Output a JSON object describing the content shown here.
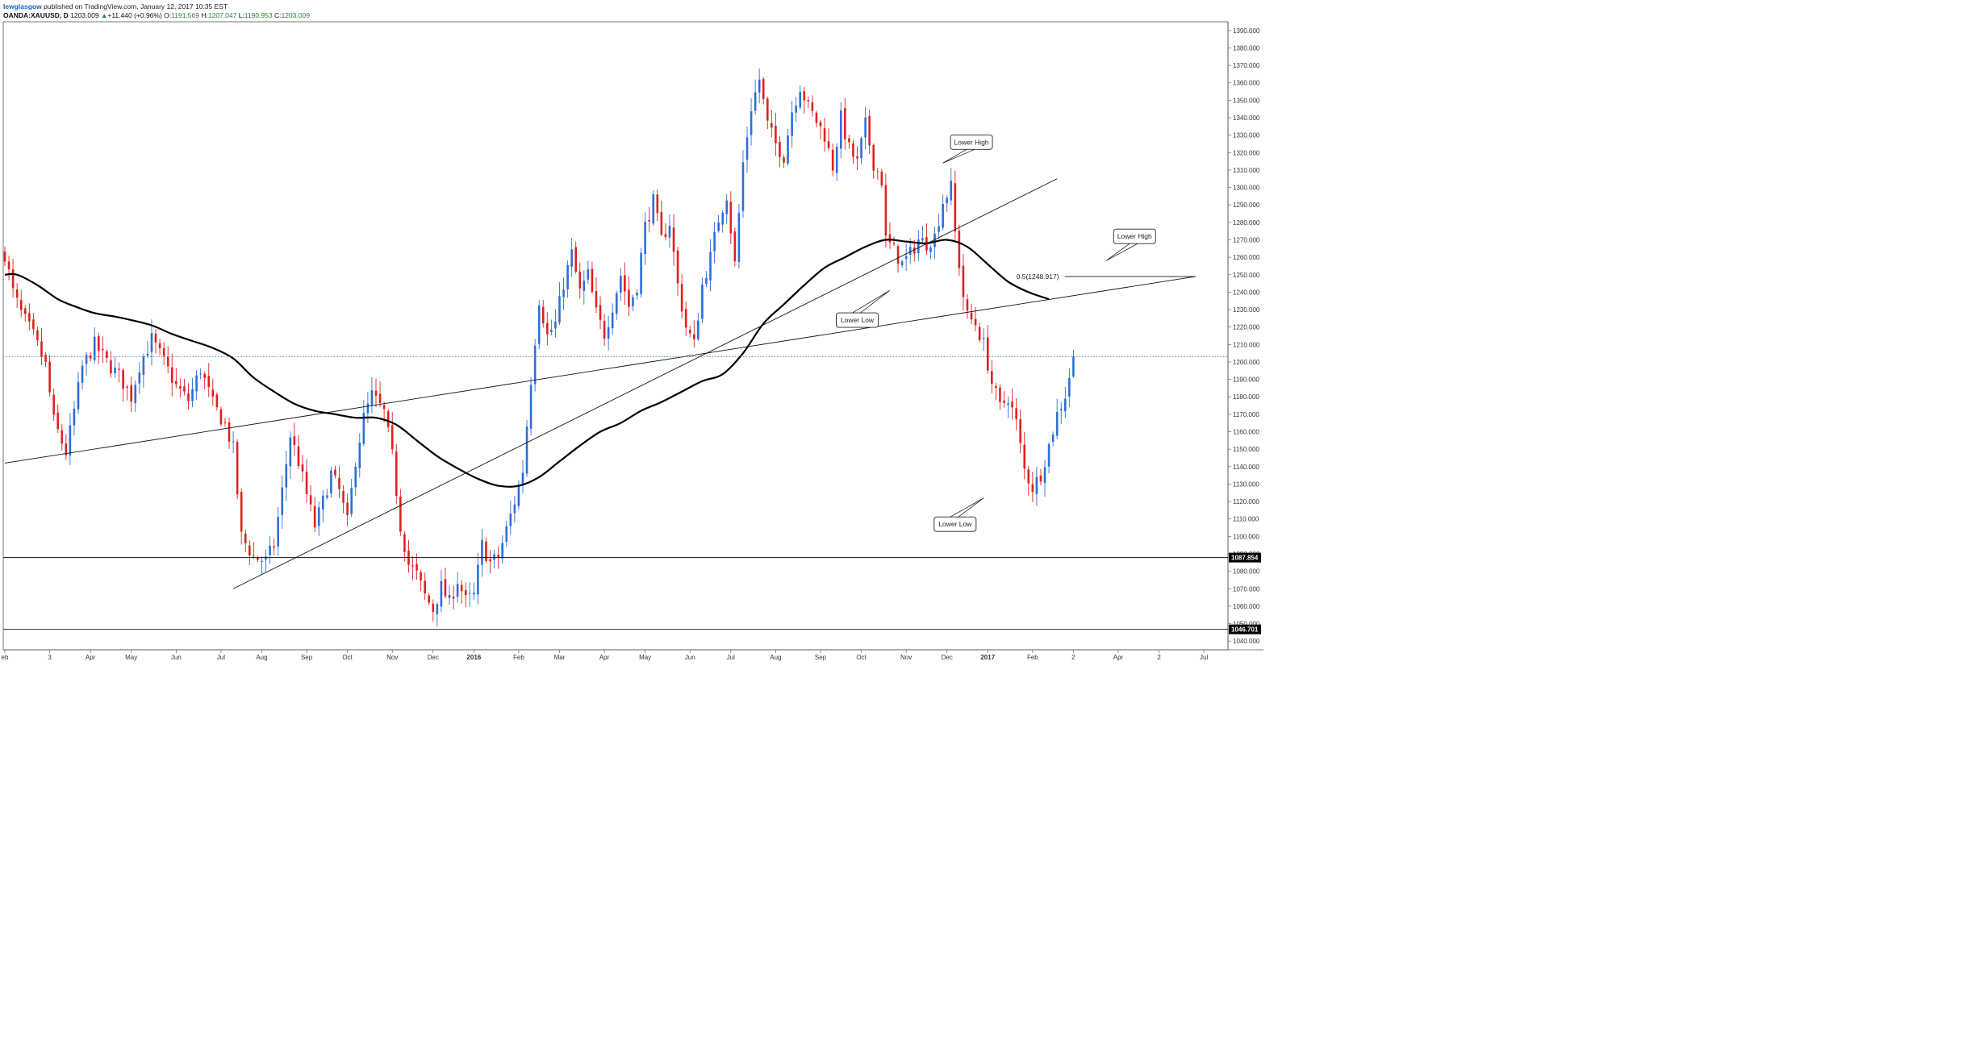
{
  "header": {
    "author": "lewglasgow",
    "published": " published on TradingView.com, January 12, 2017 10:35 EST",
    "symbol": "OANDA:XAUUSD, D",
    "last": "1203.009",
    "change": "+11.440 (+0.96%)",
    "o_label": "O:",
    "o_value": "1191.569",
    "h_label": "H:",
    "h_value": "1207.047",
    "l_label": "L:",
    "l_value": "1190.953",
    "c_label": "C:",
    "c_value": "1203.009"
  },
  "colors": {
    "up": "#2b6fd6",
    "down": "#e0201f",
    "ma": "#000000",
    "grid_border": "#555555",
    "current_line": "#4a7fb0",
    "up_arrow": "#2e7d32"
  },
  "chart_data": {
    "type": "candlestick",
    "symbol": "OANDA:XAUUSD",
    "timeframe": "D",
    "ylim": [
      1035,
      1395
    ],
    "y_ticks": [
      1040,
      1050,
      1060,
      1070,
      1080,
      1090,
      1100,
      1110,
      1120,
      1130,
      1140,
      1150,
      1160,
      1170,
      1180,
      1190,
      1200,
      1210,
      1220,
      1230,
      1240,
      1250,
      1260,
      1270,
      1280,
      1290,
      1300,
      1310,
      1320,
      1330,
      1340,
      1350,
      1360,
      1370,
      1380,
      1390
    ],
    "y_tick_decimals": 3,
    "x_ticks": [
      {
        "label": "eb",
        "idx": 0,
        "bold": false
      },
      {
        "label": "3",
        "idx": 11,
        "bold": false
      },
      {
        "label": "Apr",
        "idx": 21,
        "bold": false
      },
      {
        "label": "May",
        "idx": 31,
        "bold": false
      },
      {
        "label": "Jun",
        "idx": 42,
        "bold": false
      },
      {
        "label": "Jul",
        "idx": 53,
        "bold": false
      },
      {
        "label": "Aug",
        "idx": 63,
        "bold": false
      },
      {
        "label": "Sep",
        "idx": 74,
        "bold": false
      },
      {
        "label": "Oct",
        "idx": 84,
        "bold": false
      },
      {
        "label": "Nov",
        "idx": 95,
        "bold": false
      },
      {
        "label": "Dec",
        "idx": 105,
        "bold": false
      },
      {
        "label": "2016",
        "idx": 115,
        "bold": true
      },
      {
        "label": "Feb",
        "idx": 126,
        "bold": false
      },
      {
        "label": "Mar",
        "idx": 136,
        "bold": false
      },
      {
        "label": "Apr",
        "idx": 147,
        "bold": false
      },
      {
        "label": "May",
        "idx": 157,
        "bold": false
      },
      {
        "label": "Jun",
        "idx": 168,
        "bold": false
      },
      {
        "label": "Jul",
        "idx": 178,
        "bold": false
      },
      {
        "label": "Aug",
        "idx": 189,
        "bold": false
      },
      {
        "label": "Sep",
        "idx": 200,
        "bold": false
      },
      {
        "label": "Oct",
        "idx": 210,
        "bold": false
      },
      {
        "label": "Nov",
        "idx": 221,
        "bold": false
      },
      {
        "label": "Dec",
        "idx": 231,
        "bold": false
      },
      {
        "label": "2017",
        "idx": 241,
        "bold": true
      },
      {
        "label": "Feb",
        "idx": 252,
        "bold": false
      },
      {
        "label": "2",
        "idx": 262,
        "bold": false
      },
      {
        "label": "Apr",
        "idx": 273,
        "bold": false
      },
      {
        "label": "2",
        "idx": 283,
        "bold": false
      },
      {
        "label": "Jul",
        "idx": 294,
        "bold": false
      }
    ],
    "bars_total": 296,
    "price_anchors": [
      [
        0,
        1262
      ],
      [
        2,
        1240
      ],
      [
        4,
        1228
      ],
      [
        7,
        1215
      ],
      [
        10,
        1198
      ],
      [
        12,
        1166
      ],
      [
        15,
        1148
      ],
      [
        17,
        1172
      ],
      [
        19,
        1197
      ],
      [
        22,
        1210
      ],
      [
        25,
        1200
      ],
      [
        28,
        1192
      ],
      [
        31,
        1180
      ],
      [
        33,
        1198
      ],
      [
        36,
        1213
      ],
      [
        39,
        1200
      ],
      [
        42,
        1186
      ],
      [
        45,
        1178
      ],
      [
        48,
        1196
      ],
      [
        51,
        1176
      ],
      [
        54,
        1164
      ],
      [
        56,
        1150
      ],
      [
        58,
        1100
      ],
      [
        61,
        1088
      ],
      [
        64,
        1086
      ],
      [
        66,
        1095
      ],
      [
        68,
        1126
      ],
      [
        70,
        1158
      ],
      [
        72,
        1143
      ],
      [
        74,
        1124
      ],
      [
        76,
        1106
      ],
      [
        78,
        1120
      ],
      [
        80,
        1136
      ],
      [
        82,
        1126
      ],
      [
        84,
        1108
      ],
      [
        86,
        1144
      ],
      [
        88,
        1168
      ],
      [
        90,
        1181
      ],
      [
        93,
        1171
      ],
      [
        95,
        1146
      ],
      [
        97,
        1106
      ],
      [
        99,
        1084
      ],
      [
        101,
        1078
      ],
      [
        103,
        1066
      ],
      [
        105,
        1058
      ],
      [
        107,
        1071
      ],
      [
        109,
        1062
      ],
      [
        111,
        1075
      ],
      [
        113,
        1063
      ],
      [
        115,
        1066
      ],
      [
        117,
        1095
      ],
      [
        119,
        1085
      ],
      [
        121,
        1088
      ],
      [
        123,
        1104
      ],
      [
        125,
        1120
      ],
      [
        127,
        1138
      ],
      [
        129,
        1190
      ],
      [
        131,
        1236
      ],
      [
        133,
        1215
      ],
      [
        135,
        1222
      ],
      [
        137,
        1245
      ],
      [
        139,
        1262
      ],
      [
        141,
        1240
      ],
      [
        143,
        1250
      ],
      [
        145,
        1228
      ],
      [
        147,
        1216
      ],
      [
        149,
        1232
      ],
      [
        151,
        1250
      ],
      [
        153,
        1232
      ],
      [
        155,
        1244
      ],
      [
        157,
        1278
      ],
      [
        159,
        1292
      ],
      [
        161,
        1270
      ],
      [
        163,
        1280
      ],
      [
        165,
        1244
      ],
      [
        167,
        1220
      ],
      [
        169,
        1210
      ],
      [
        171,
        1244
      ],
      [
        173,
        1260
      ],
      [
        175,
        1282
      ],
      [
        177,
        1296
      ],
      [
        179,
        1256
      ],
      [
        181,
        1314
      ],
      [
        183,
        1346
      ],
      [
        185,
        1362
      ],
      [
        187,
        1336
      ],
      [
        189,
        1325
      ],
      [
        191,
        1318
      ],
      [
        193,
        1344
      ],
      [
        195,
        1358
      ],
      [
        197,
        1346
      ],
      [
        199,
        1338
      ],
      [
        201,
        1330
      ],
      [
        203,
        1312
      ],
      [
        205,
        1340
      ],
      [
        207,
        1322
      ],
      [
        209,
        1314
      ],
      [
        211,
        1336
      ],
      [
        213,
        1314
      ],
      [
        215,
        1304
      ],
      [
        216,
        1270
      ],
      [
        218,
        1264
      ],
      [
        220,
        1256
      ],
      [
        222,
        1262
      ],
      [
        224,
        1270
      ],
      [
        226,
        1268
      ],
      [
        228,
        1272
      ],
      [
        230,
        1292
      ],
      [
        232,
        1300
      ],
      [
        233,
        1274
      ],
      [
        235,
        1238
      ],
      [
        236,
        1226
      ],
      [
        238,
        1222
      ],
      [
        240,
        1210
      ],
      [
        242,
        1188
      ],
      [
        244,
        1174
      ],
      [
        246,
        1180
      ],
      [
        248,
        1165
      ],
      [
        250,
        1138
      ],
      [
        252,
        1128
      ],
      [
        254,
        1136
      ],
      [
        256,
        1152
      ],
      [
        258,
        1170
      ],
      [
        260,
        1181
      ],
      [
        261,
        1192
      ],
      [
        262,
        1203
      ]
    ],
    "moving_average": {
      "anchors": [
        [
          0,
          1250
        ],
        [
          3,
          1250
        ],
        [
          8,
          1244
        ],
        [
          13,
          1236
        ],
        [
          17,
          1232
        ],
        [
          22,
          1228
        ],
        [
          27,
          1226
        ],
        [
          31,
          1224
        ],
        [
          36,
          1221
        ],
        [
          41,
          1216
        ],
        [
          46,
          1212
        ],
        [
          51,
          1208
        ],
        [
          56,
          1202
        ],
        [
          61,
          1191
        ],
        [
          66,
          1183
        ],
        [
          71,
          1176
        ],
        [
          76,
          1172
        ],
        [
          81,
          1170
        ],
        [
          86,
          1168
        ],
        [
          91,
          1168
        ],
        [
          96,
          1164
        ],
        [
          101,
          1155
        ],
        [
          106,
          1146
        ],
        [
          111,
          1139
        ],
        [
          116,
          1133
        ],
        [
          121,
          1129
        ],
        [
          126,
          1129
        ],
        [
          131,
          1134
        ],
        [
          136,
          1143
        ],
        [
          141,
          1152
        ],
        [
          146,
          1160
        ],
        [
          151,
          1165
        ],
        [
          156,
          1172
        ],
        [
          161,
          1177
        ],
        [
          166,
          1183
        ],
        [
          171,
          1189
        ],
        [
          176,
          1193
        ],
        [
          181,
          1205
        ],
        [
          186,
          1222
        ],
        [
          191,
          1233
        ],
        [
          196,
          1244
        ],
        [
          201,
          1254
        ],
        [
          206,
          1260
        ],
        [
          211,
          1266
        ],
        [
          216,
          1270
        ],
        [
          221,
          1269
        ],
        [
          226,
          1268
        ],
        [
          231,
          1270
        ],
        [
          236,
          1266
        ],
        [
          241,
          1256
        ],
        [
          246,
          1246
        ],
        [
          251,
          1240
        ],
        [
          256,
          1236
        ]
      ]
    },
    "trendlines": [
      {
        "from": [
          0,
          1142
        ],
        "to": [
          292,
          1249
        ]
      },
      {
        "from": [
          56,
          1070
        ],
        "to": [
          258,
          1305
        ]
      }
    ],
    "horizontal_lines": [
      {
        "price": 1087.854,
        "label": "1087.854"
      },
      {
        "price": 1046.701,
        "label": "1046.701"
      }
    ],
    "current_price": 1203.009,
    "fib_level": {
      "price": 1248.917,
      "label": "0.5(1248.917)",
      "from_idx": 248,
      "to_idx": 292
    },
    "annotations": [
      {
        "text": "Lower High",
        "box_idx": 237,
        "box_price": 1326,
        "tip_idx": 230,
        "tip_price": 1314
      },
      {
        "text": "Lower High",
        "box_idx": 277,
        "box_price": 1272,
        "tip_idx": 270,
        "tip_price": 1258
      },
      {
        "text": "Lower Low",
        "box_idx": 209,
        "box_price": 1224,
        "tip_idx": 217,
        "tip_price": 1241
      },
      {
        "text": "Lower Low",
        "box_idx": 233,
        "box_price": 1107,
        "tip_idx": 240,
        "tip_price": 1122
      }
    ]
  }
}
